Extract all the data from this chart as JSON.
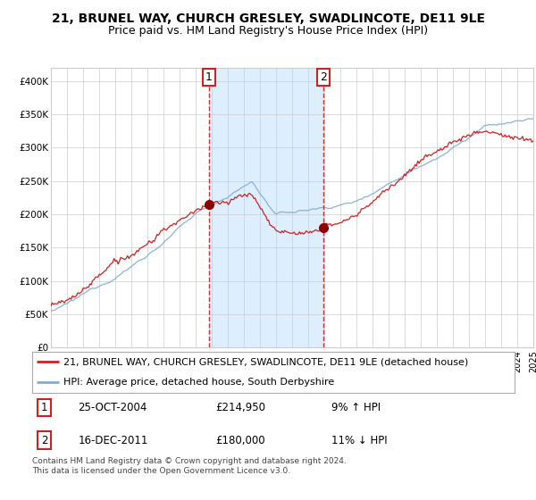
{
  "title": "21, BRUNEL WAY, CHURCH GRESLEY, SWADLINCOTE, DE11 9LE",
  "subtitle": "Price paid vs. HM Land Registry's House Price Index (HPI)",
  "ylim": [
    0,
    420000
  ],
  "yticks": [
    0,
    50000,
    100000,
    150000,
    200000,
    250000,
    300000,
    350000,
    400000
  ],
  "ytick_labels": [
    "£0",
    "£50K",
    "£100K",
    "£150K",
    "£200K",
    "£250K",
    "£300K",
    "£350K",
    "£400K"
  ],
  "x_start_year": 1995,
  "x_end_year": 2025,
  "hpi_color": "#7aaed4",
  "price_color": "#cc2222",
  "dot_color": "#8b0000",
  "shade_color": "#ddeeff",
  "vline_color": "#cc3333",
  "grid_color": "#cccccc",
  "background_color": "#ffffff",
  "sale1_year": 2004.82,
  "sale1_price": 214950,
  "sale1_label": "1",
  "sale1_date": "25-OCT-2004",
  "sale1_pct": "9% ↑ HPI",
  "sale2_year": 2011.96,
  "sale2_price": 180000,
  "sale2_label": "2",
  "sale2_date": "16-DEC-2011",
  "sale2_pct": "11% ↓ HPI",
  "legend_line1": "21, BRUNEL WAY, CHURCH GRESLEY, SWADLINCOTE, DE11 9LE (detached house)",
  "legend_line2": "HPI: Average price, detached house, South Derbyshire",
  "footnote": "Contains HM Land Registry data © Crown copyright and database right 2024.\nThis data is licensed under the Open Government Licence v3.0.",
  "title_fontsize": 10,
  "subtitle_fontsize": 9,
  "tick_fontsize": 7.5,
  "legend_fontsize": 8,
  "footnote_fontsize": 6.5
}
